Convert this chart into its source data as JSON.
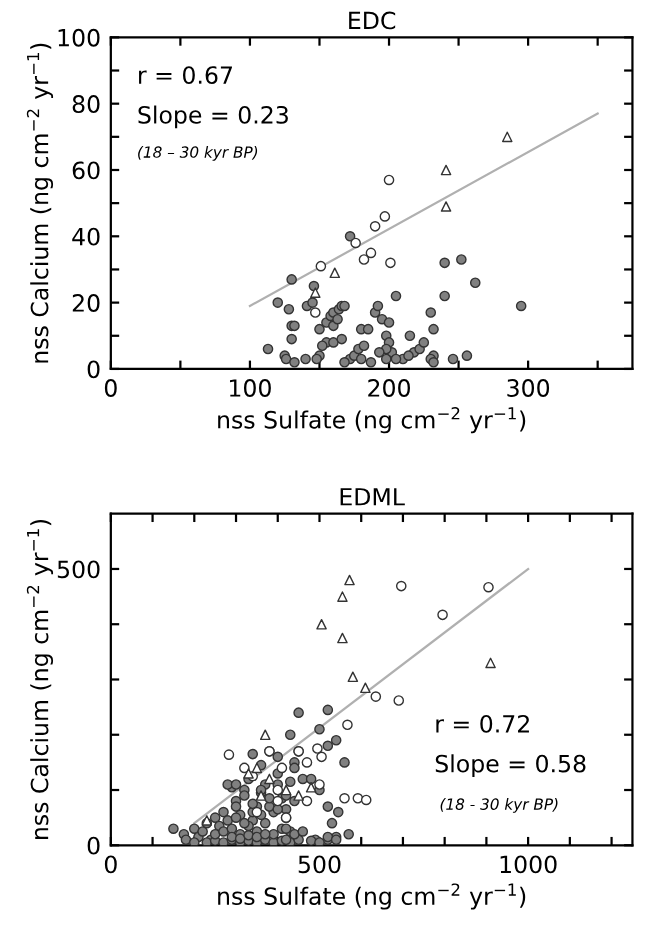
{
  "chart_data": [
    {
      "type": "scatter",
      "title": "EDC",
      "xlabel": "nss Sulfate (ng cm$^{−2}$ yr$^{−1}$)",
      "ylabel": "nss Calcium (ng cm$^{−2}$ yr$^{−1}$)",
      "xlim": [
        0,
        375
      ],
      "ylim": [
        0,
        100
      ],
      "xticks": [
        0,
        {
          "value": 50,
          "label": null
        },
        100,
        {
          "value": 150,
          "label": null
        },
        200,
        {
          "value": 250,
          "label": null
        },
        300,
        {
          "value": 350,
          "label": null
        }
      ],
      "yticks": [
        0,
        {
          "value": 10,
          "label": null
        },
        20,
        {
          "value": 30,
          "label": null
        },
        40,
        {
          "value": 50,
          "label": null
        },
        60,
        {
          "value": 70,
          "label": null
        },
        80,
        {
          "value": 90,
          "label": null
        },
        100
      ],
      "grid": false,
      "annotations": [
        "r = 0.67",
        "Slope = 0.23",
        "(18 – 30 kyr BP)"
      ],
      "series": [
        {
          "marker": "circle",
          "color": "#808080",
          "x": [
            130,
            172,
            146,
            120,
            128,
            130,
            132,
            125,
            113,
            130,
            141,
            145,
            150,
            155,
            158,
            160,
            164,
            166,
            168,
            160,
            163,
            155,
            152,
            160,
            166,
            150,
            140,
            126,
            132,
            148,
            172,
            175,
            168,
            178,
            182,
            180,
            185,
            180,
            187,
            190,
            192,
            195,
            200,
            198,
            200,
            202,
            198,
            193,
            205,
            215,
            218,
            222,
            225,
            210,
            214,
            230,
            232,
            232,
            230,
            240,
            240,
            252,
            262,
            295,
            246,
            256,
            232,
            198,
            205
          ],
          "values": [
            27,
            40,
            25,
            20,
            18,
            13,
            13,
            4,
            6,
            9,
            19,
            20,
            12,
            14,
            16,
            17,
            18,
            19,
            19,
            13,
            15,
            8,
            7,
            8,
            9,
            4,
            3,
            3,
            2,
            3,
            3,
            4,
            2,
            6,
            7,
            12,
            12,
            3,
            2,
            17,
            19,
            15,
            14,
            10,
            8,
            5,
            6,
            5,
            22,
            10,
            5,
            6,
            8,
            3,
            4,
            17,
            12,
            4,
            3,
            32,
            22,
            33,
            26,
            19,
            3,
            4,
            2,
            3,
            3
          ]
        },
        {
          "marker": "circle",
          "color": "#ffffff",
          "x": [
            200,
            197,
            190,
            187,
            182,
            176,
            201,
            151,
            147
          ],
          "values": [
            57,
            46,
            43,
            35,
            33,
            38,
            32,
            31,
            17
          ]
        },
        {
          "marker": "triangle",
          "color": "#ffffff",
          "x": [
            285,
            241,
            241,
            161,
            147
          ],
          "values": [
            70,
            60,
            49,
            29,
            23
          ]
        },
        {
          "type": "line",
          "color": "#b0b0b0",
          "x": [
            100,
            350
          ],
          "values": [
            19,
            77
          ]
        }
      ]
    },
    {
      "type": "scatter",
      "title": "EDML",
      "xlabel": "nss Sulfate (ng cm$^{−2}$ yr$^{−1}$)",
      "ylabel": "nss Calcium (ng cm$^{−2}$ yr$^{−1}$)",
      "xlim": [
        0,
        1250
      ],
      "ylim": [
        0,
        600
      ],
      "xticks": [
        0,
        {
          "value": 100,
          "label": null
        },
        {
          "value": 200,
          "label": null
        },
        {
          "value": 300,
          "label": null
        },
        {
          "value": 400,
          "label": null
        },
        500,
        {
          "value": 600,
          "label": null
        },
        {
          "value": 700,
          "label": null
        },
        {
          "value": 800,
          "label": null
        },
        {
          "value": 900,
          "label": null
        },
        1000,
        {
          "value": 1100,
          "label": null
        },
        {
          "value": 1200,
          "label": null
        }
      ],
      "yticks": [
        0,
        {
          "value": 100,
          "label": null
        },
        {
          "value": 200,
          "label": null
        },
        {
          "value": 300,
          "label": null
        },
        {
          "value": 400,
          "label": null
        },
        500
      ],
      "grid": false,
      "annotations": [
        "r = 0.72",
        "Slope = 0.58",
        "(18 - 30 kyr BP)"
      ],
      "series": [
        {
          "marker": "circle",
          "color": "#808080",
          "x": [
            150,
            175,
            180,
            200,
            210,
            220,
            230,
            240,
            250,
            260,
            270,
            290,
            300,
            310,
            320,
            330,
            340,
            350,
            360,
            370,
            390,
            400,
            410,
            420,
            430,
            440,
            450,
            200,
            230,
            250,
            270,
            290,
            310,
            330,
            350,
            370,
            390,
            410,
            430,
            450,
            250,
            270,
            290,
            310,
            330,
            350,
            370,
            390,
            410,
            430,
            280,
            300,
            320,
            340,
            360,
            380,
            400,
            420,
            300,
            320,
            340,
            360,
            380,
            400,
            420,
            440,
            290,
            310,
            330,
            350,
            370,
            280,
            300,
            450,
            430,
            440,
            460,
            380,
            400,
            360,
            340,
            490,
            520,
            540,
            500,
            520,
            540,
            560,
            570,
            520,
            480,
            500,
            520,
            530,
            545,
            420,
            440,
            420,
            460,
            480,
            500,
            520,
            540
          ],
          "values": [
            30,
            20,
            10,
            30,
            15,
            25,
            40,
            10,
            50,
            35,
            60,
            105,
            80,
            55,
            100,
            120,
            45,
            70,
            95,
            110,
            60,
            130,
            85,
            65,
            115,
            150,
            240,
            5,
            5,
            8,
            5,
            10,
            5,
            8,
            5,
            10,
            5,
            8,
            5,
            10,
            20,
            25,
            30,
            20,
            35,
            25,
            40,
            20,
            30,
            25,
            45,
            50,
            40,
            60,
            55,
            70,
            65,
            50,
            70,
            90,
            75,
            100,
            85,
            110,
            90,
            80,
            15,
            12,
            18,
            15,
            20,
            110,
            110,
            170,
            200,
            140,
            120,
            170,
            160,
            145,
            165,
            10,
            10,
            15,
            210,
            245,
            190,
            150,
            20,
            70,
            120,
            100,
            180,
            40,
            60,
            30,
            20,
            10,
            25,
            8,
            5,
            15,
            10
          ]
        },
        {
          "marker": "circle",
          "color": "#ffffff",
          "x": [
            696,
            795,
            905,
            690,
            635,
            567,
            283,
            592,
            612,
            560,
            505,
            495,
            470,
            450,
            410,
            400,
            380,
            340,
            320,
            420,
            470,
            500,
            350,
            400
          ],
          "values": [
            469,
            417,
            467,
            262,
            269,
            218,
            164,
            85,
            82,
            85,
            160,
            175,
            150,
            170,
            140,
            100,
            170,
            125,
            140,
            50,
            80,
            110,
            60,
            80
          ]
        },
        {
          "marker": "triangle",
          "color": "#ffffff",
          "x": [
            572,
            555,
            505,
            555,
            580,
            610,
            910,
            370,
            230,
            330,
            350,
            380,
            420,
            450,
            480,
            360
          ],
          "values": [
            480,
            450,
            400,
            375,
            305,
            285,
            330,
            200,
            45,
            130,
            140,
            120,
            100,
            90,
            105,
            90
          ]
        },
        {
          "type": "line",
          "color": "#b0b0b0",
          "x": [
            200,
            1000
          ],
          "values": [
            40,
            500
          ]
        }
      ]
    }
  ]
}
